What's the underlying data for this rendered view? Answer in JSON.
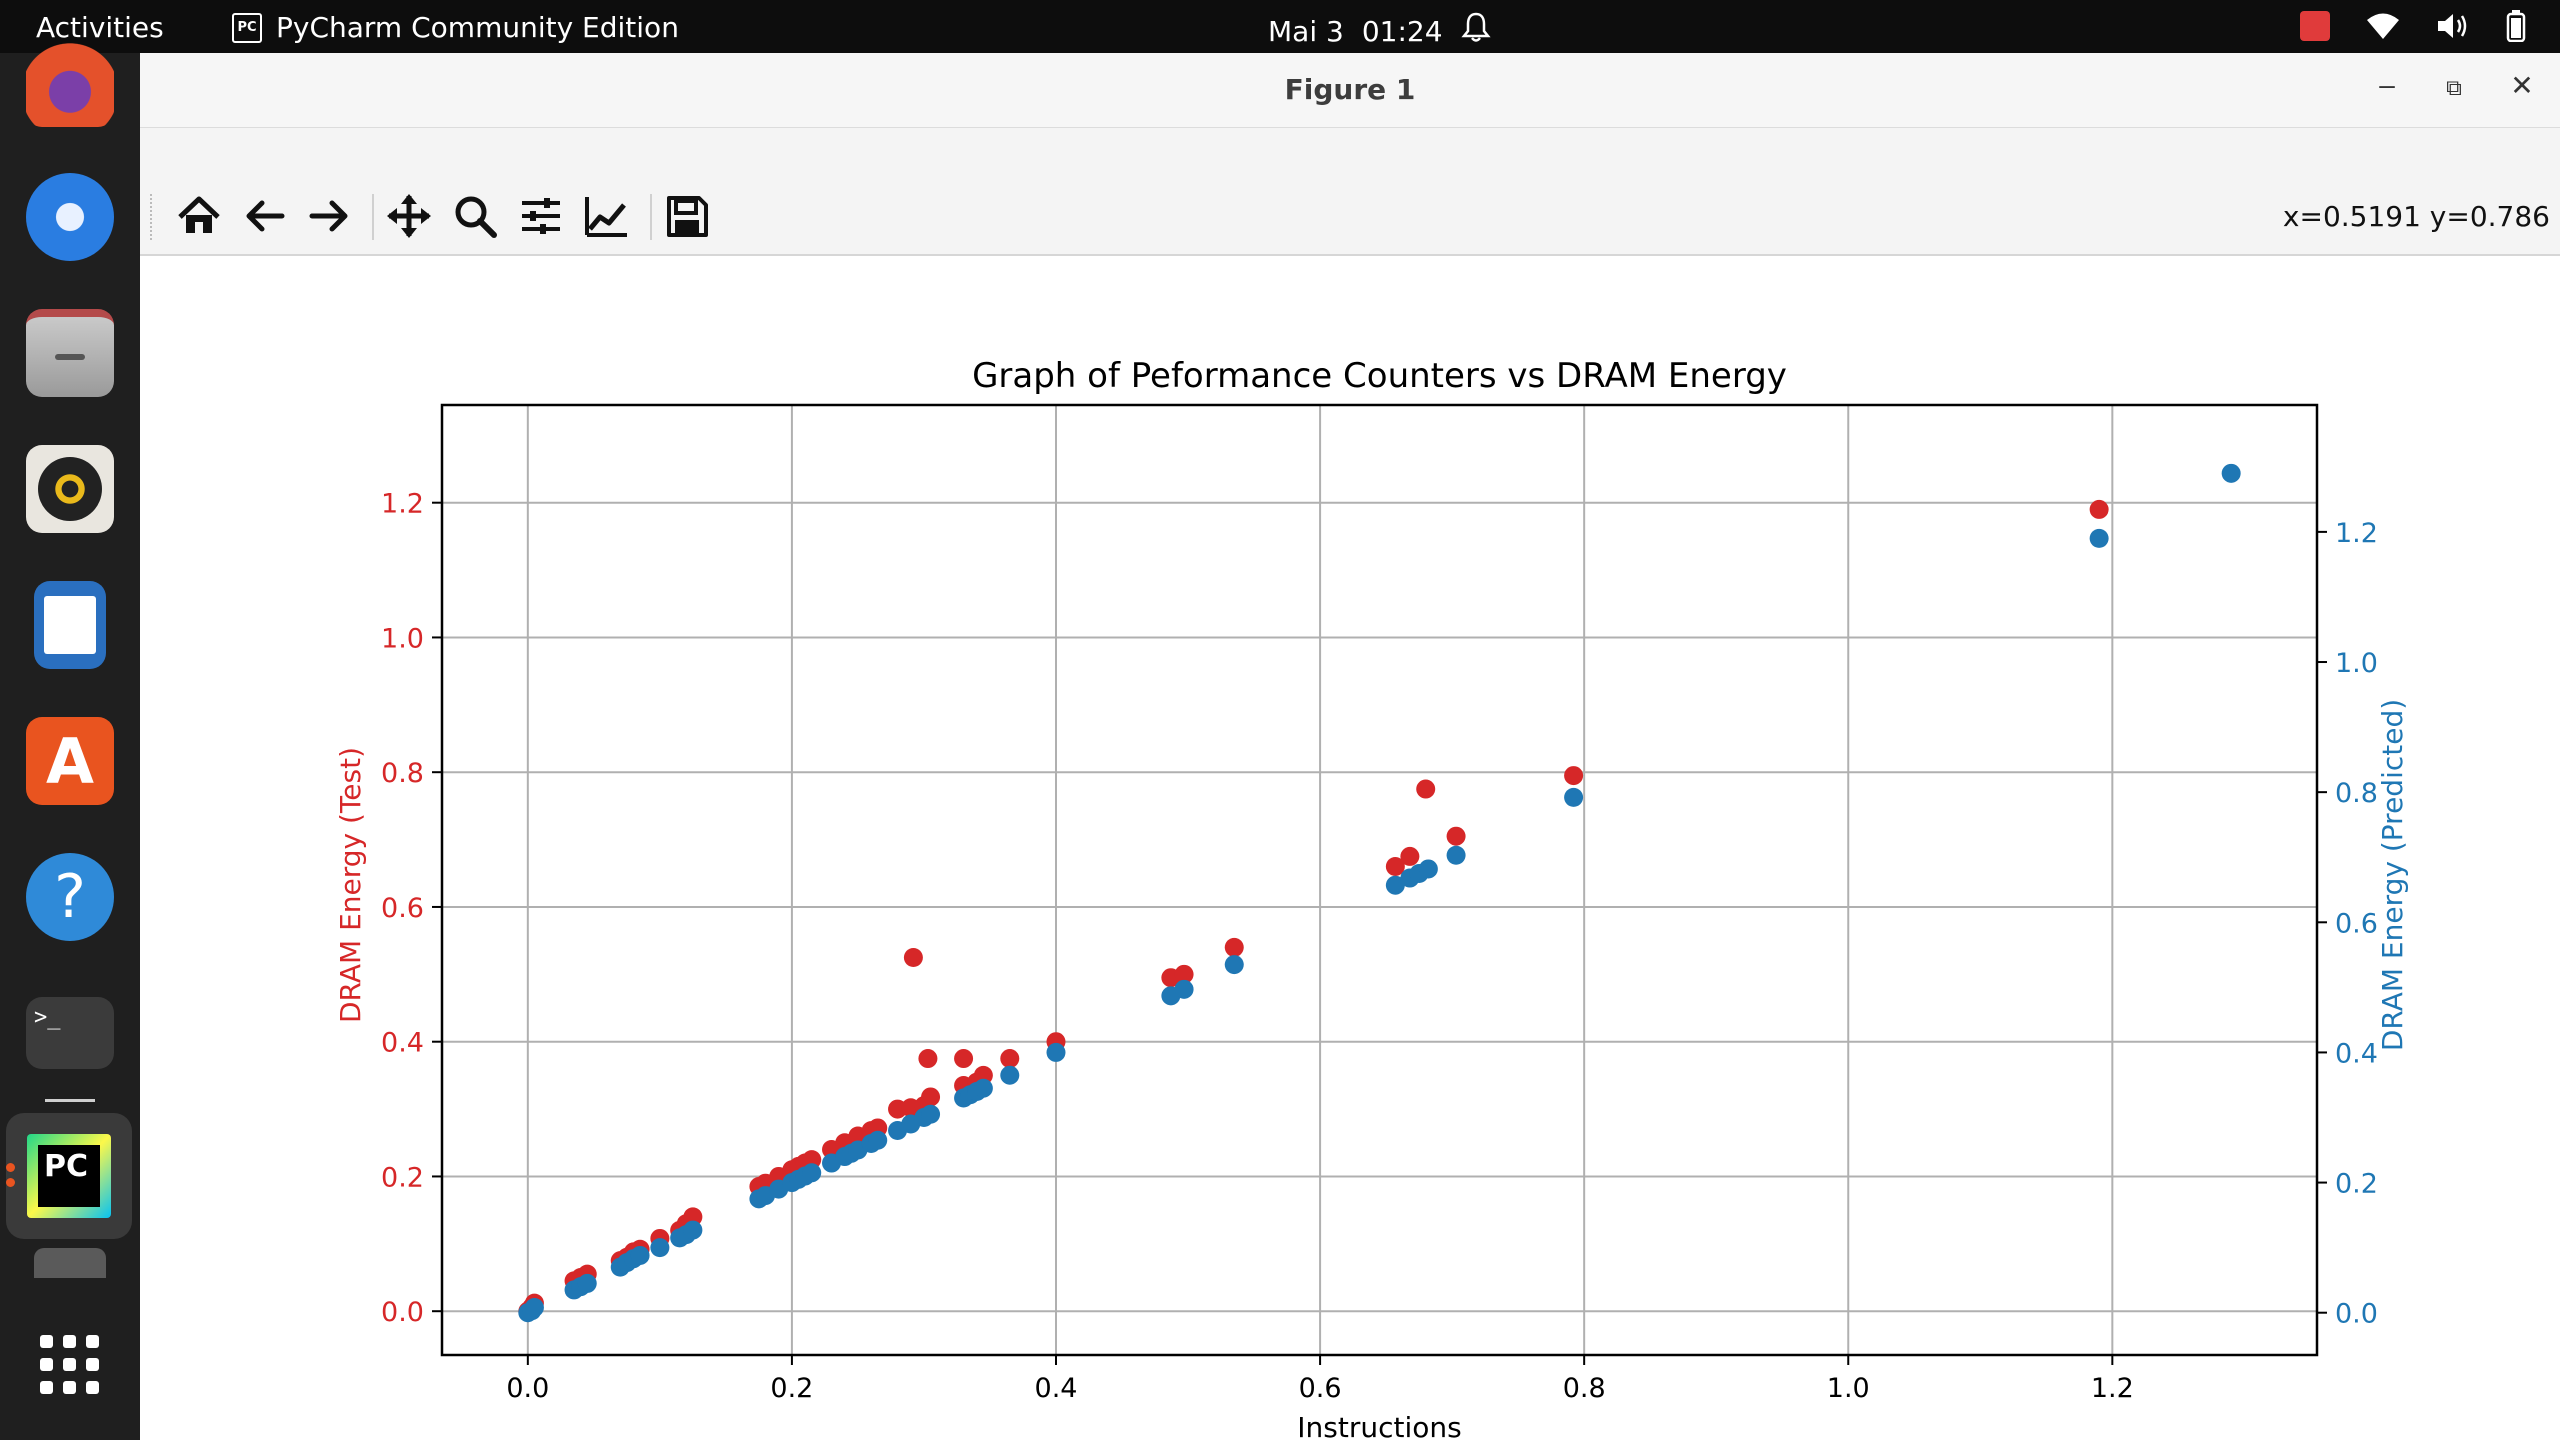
{
  "topbar": {
    "activities": "Activities",
    "app_name": "PyCharm Community Edition",
    "app_icon_text": "PC",
    "date": "Mai 3",
    "time": "01:24"
  },
  "dock": {
    "items": [
      "firefox-icon",
      "thunderbird-icon",
      "files-icon",
      "rhythmbox-icon",
      "libreoffice-writer-icon",
      "app-center-icon",
      "help-icon",
      "terminal-icon",
      "pycharm-icon",
      "show-apps-icon"
    ],
    "help_glyph": "?",
    "terminal_glyph": ">_",
    "pycharm_text": "PC"
  },
  "window": {
    "title": "Figure 1",
    "minimize": "–",
    "restore": "⧉",
    "close": "✕"
  },
  "toolbar": {
    "buttons": [
      "home-icon",
      "back-icon",
      "forward-icon",
      "pan-icon",
      "zoom-icon",
      "subplots-icon",
      "customize-icon",
      "save-icon"
    ],
    "coords": "x=0.5191 y=0.786"
  },
  "chart_data": {
    "type": "scatter",
    "title": "Graph of Peformance Counters vs  DRAM Energy",
    "xlabel": "Instructions",
    "ylabel_left": "DRAM Energy (Test)",
    "ylabel_right": "DRAM Energy (Predicted)",
    "xlim": [
      -0.065,
      1.355
    ],
    "ylim_left": [
      -0.065,
      1.345
    ],
    "ylim_right": [
      -0.065,
      1.395
    ],
    "xticks": [
      "0.0",
      "0.2",
      "0.4",
      "0.6",
      "0.8",
      "1.0",
      "1.2"
    ],
    "yticks_left": [
      "0.0",
      "0.2",
      "0.4",
      "0.6",
      "0.8",
      "1.0",
      "1.2"
    ],
    "yticks_right": [
      "0.0",
      "0.2",
      "0.4",
      "0.6",
      "0.8",
      "1.0",
      "1.2"
    ],
    "grid": true,
    "colors": {
      "test": "#d62728",
      "predicted": "#1f77b4"
    },
    "series": [
      {
        "axis": "left",
        "points": [
          [
            0.0,
            0.0
          ],
          [
            0.003,
            0.006
          ],
          [
            0.005,
            0.012
          ],
          [
            0.035,
            0.045
          ],
          [
            0.04,
            0.05
          ],
          [
            0.045,
            0.055
          ],
          [
            0.07,
            0.075
          ],
          [
            0.075,
            0.08
          ],
          [
            0.08,
            0.088
          ],
          [
            0.085,
            0.092
          ],
          [
            0.1,
            0.108
          ],
          [
            0.115,
            0.12
          ],
          [
            0.12,
            0.13
          ],
          [
            0.125,
            0.14
          ],
          [
            0.175,
            0.185
          ],
          [
            0.18,
            0.19
          ],
          [
            0.19,
            0.2
          ],
          [
            0.2,
            0.21
          ],
          [
            0.205,
            0.215
          ],
          [
            0.21,
            0.22
          ],
          [
            0.215,
            0.225
          ],
          [
            0.23,
            0.24
          ],
          [
            0.24,
            0.25
          ],
          [
            0.25,
            0.26
          ],
          [
            0.26,
            0.268
          ],
          [
            0.265,
            0.272
          ],
          [
            0.28,
            0.3
          ],
          [
            0.29,
            0.302
          ],
          [
            0.292,
            0.525
          ],
          [
            0.3,
            0.305
          ],
          [
            0.303,
            0.375
          ],
          [
            0.305,
            0.318
          ],
          [
            0.33,
            0.335
          ],
          [
            0.33,
            0.375
          ],
          [
            0.34,
            0.34
          ],
          [
            0.345,
            0.35
          ],
          [
            0.365,
            0.375
          ],
          [
            0.4,
            0.4
          ],
          [
            0.487,
            0.495
          ],
          [
            0.497,
            0.5
          ],
          [
            0.535,
            0.54
          ],
          [
            0.657,
            0.66
          ],
          [
            0.668,
            0.675
          ],
          [
            0.68,
            0.775
          ],
          [
            0.703,
            0.705
          ],
          [
            0.792,
            0.795
          ],
          [
            1.19,
            1.19
          ]
        ]
      },
      {
        "axis": "right",
        "points": [
          [
            0.0,
            0.0
          ],
          [
            0.003,
            0.003
          ],
          [
            0.005,
            0.008
          ],
          [
            0.035,
            0.035
          ],
          [
            0.04,
            0.04
          ],
          [
            0.045,
            0.045
          ],
          [
            0.07,
            0.07
          ],
          [
            0.075,
            0.077
          ],
          [
            0.08,
            0.083
          ],
          [
            0.085,
            0.088
          ],
          [
            0.1,
            0.1
          ],
          [
            0.115,
            0.115
          ],
          [
            0.12,
            0.12
          ],
          [
            0.125,
            0.127
          ],
          [
            0.175,
            0.175
          ],
          [
            0.18,
            0.18
          ],
          [
            0.19,
            0.19
          ],
          [
            0.2,
            0.2
          ],
          [
            0.205,
            0.205
          ],
          [
            0.21,
            0.21
          ],
          [
            0.215,
            0.215
          ],
          [
            0.23,
            0.23
          ],
          [
            0.24,
            0.24
          ],
          [
            0.245,
            0.245
          ],
          [
            0.25,
            0.25
          ],
          [
            0.26,
            0.26
          ],
          [
            0.265,
            0.265
          ],
          [
            0.28,
            0.28
          ],
          [
            0.29,
            0.29
          ],
          [
            0.3,
            0.3
          ],
          [
            0.305,
            0.305
          ],
          [
            0.33,
            0.33
          ],
          [
            0.335,
            0.335
          ],
          [
            0.34,
            0.34
          ],
          [
            0.345,
            0.345
          ],
          [
            0.365,
            0.365
          ],
          [
            0.4,
            0.4
          ],
          [
            0.487,
            0.487
          ],
          [
            0.497,
            0.497
          ],
          [
            0.535,
            0.535
          ],
          [
            0.657,
            0.657
          ],
          [
            0.668,
            0.668
          ],
          [
            0.675,
            0.675
          ],
          [
            0.682,
            0.682
          ],
          [
            0.703,
            0.703
          ],
          [
            0.792,
            0.792
          ],
          [
            1.19,
            1.19
          ],
          [
            1.29,
            1.29
          ]
        ]
      }
    ]
  }
}
